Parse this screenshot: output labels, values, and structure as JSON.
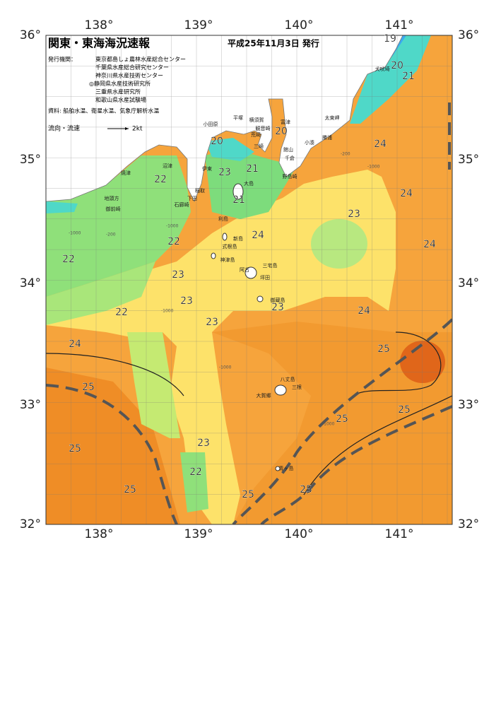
{
  "header": {
    "title": "関東・東海海況速報",
    "date": "平成25年11月3日 発行"
  },
  "info": {
    "publisher_label": "発行機関：",
    "publishers": [
      "東京都島しょ農林水産総合センター",
      "千葉県水産総合研究センター",
      "神奈川県水産技術センター",
      "◎静岡県水産技術研究所",
      "三重県水産研究所",
      "和歌山県水産試験場"
    ],
    "source": "資料: 船舶水温、衛星水温、気象庁解析水温",
    "current_label": "流向・流速",
    "current_speed": "2kt"
  },
  "axes": {
    "longitudes": [
      "138°",
      "139°",
      "140°",
      "141°"
    ],
    "latitudes": [
      "36°",
      "35°",
      "34°",
      "33°",
      "32°"
    ]
  },
  "places": [
    "小田原",
    "平塚",
    "横須賀",
    "観音崎",
    "富津",
    "荒崎",
    "三崎",
    "館山",
    "千倉",
    "野島崎",
    "太東岬",
    "勝浦",
    "小湊",
    "犬吠埼",
    "沼津",
    "伊東",
    "焼津",
    "稲取",
    "下田",
    "石廊崎",
    "地頭方",
    "御前崎",
    "大島",
    "利島",
    "新島",
    "式根島",
    "神津島",
    "三宅島",
    "阿古",
    "坪田",
    "御蔵島",
    "八丈島",
    "三根",
    "大賀郷",
    "青ヶ島"
  ],
  "temperature_labels": [
    "19",
    "20",
    "21",
    "20",
    "20",
    "21",
    "23",
    "22",
    "21",
    "24",
    "22",
    "22",
    "23",
    "24",
    "24",
    "24",
    "23",
    "23",
    "23",
    "24",
    "22",
    "23",
    "24",
    "25",
    "25",
    "25",
    "25",
    "23",
    "25",
    "22",
    "25",
    "25",
    "25"
  ],
  "depth_labels": [
    "-200",
    "-1000",
    "-200",
    "-1000",
    "-1000",
    "-1000",
    "-1000",
    "-1000"
  ]
}
